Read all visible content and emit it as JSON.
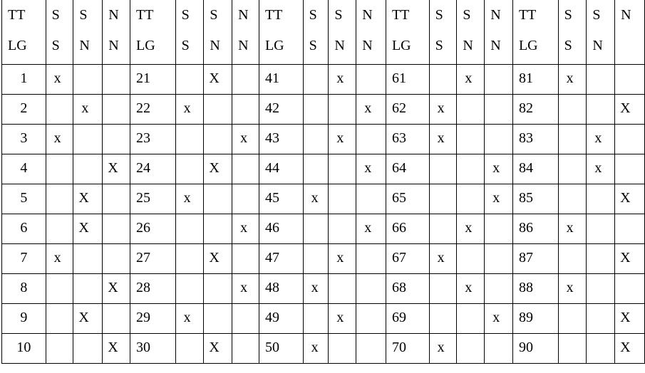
{
  "headers": [
    [
      [
        "TT",
        "LG"
      ],
      [
        "S",
        "S"
      ],
      [
        "S",
        "N"
      ],
      [
        "N",
        "N"
      ]
    ],
    [
      [
        "TT",
        "LG"
      ],
      [
        "S",
        "S"
      ],
      [
        "S",
        "N"
      ],
      [
        "N",
        "N"
      ]
    ],
    [
      [
        "TT",
        "LG"
      ],
      [
        "S",
        "S"
      ],
      [
        "S",
        "N"
      ],
      [
        "N",
        "N"
      ]
    ],
    [
      [
        "TT",
        "LG"
      ],
      [
        "S",
        "S"
      ],
      [
        "S",
        "N"
      ],
      [
        "N",
        "N"
      ]
    ],
    [
      [
        "TT",
        "LG"
      ],
      [
        "S",
        "S"
      ],
      [
        "S",
        "N"
      ],
      [
        "N",
        ""
      ]
    ]
  ],
  "rows": [
    [
      [
        "1",
        "x",
        "",
        ""
      ],
      [
        "21",
        "",
        "X",
        ""
      ],
      [
        "41",
        "",
        "x",
        ""
      ],
      [
        "61",
        "",
        "x",
        ""
      ],
      [
        "81",
        "x",
        "",
        ""
      ]
    ],
    [
      [
        "2",
        "",
        "x",
        ""
      ],
      [
        "22",
        "x",
        "",
        ""
      ],
      [
        "42",
        "",
        "",
        "x"
      ],
      [
        "62",
        "x",
        "",
        ""
      ],
      [
        "82",
        "",
        "",
        "X"
      ]
    ],
    [
      [
        "3",
        "x",
        "",
        ""
      ],
      [
        "23",
        "",
        "",
        "x"
      ],
      [
        "43",
        "",
        "x",
        ""
      ],
      [
        "63",
        "x",
        "",
        ""
      ],
      [
        "83",
        "",
        "x",
        ""
      ]
    ],
    [
      [
        "4",
        "",
        "",
        "X"
      ],
      [
        "24",
        "",
        "X",
        ""
      ],
      [
        "44",
        "",
        "",
        "x"
      ],
      [
        "64",
        "",
        "",
        "x"
      ],
      [
        "84",
        "",
        "x",
        ""
      ]
    ],
    [
      [
        "5",
        "",
        "X",
        ""
      ],
      [
        "25",
        "x",
        "",
        ""
      ],
      [
        "45",
        "x",
        "",
        ""
      ],
      [
        "65",
        "",
        "",
        "x"
      ],
      [
        "85",
        "",
        "",
        "X"
      ]
    ],
    [
      [
        "6",
        "",
        "X",
        ""
      ],
      [
        "26",
        "",
        "",
        "x"
      ],
      [
        "46",
        "",
        "",
        "x"
      ],
      [
        "66",
        "",
        "x",
        ""
      ],
      [
        "86",
        "x",
        "",
        ""
      ]
    ],
    [
      [
        "7",
        "x",
        "",
        ""
      ],
      [
        "27",
        "",
        "X",
        ""
      ],
      [
        "47",
        "",
        "x",
        ""
      ],
      [
        "67",
        "x",
        "",
        ""
      ],
      [
        "87",
        "",
        "",
        "X"
      ]
    ],
    [
      [
        "8",
        "",
        "",
        "X"
      ],
      [
        "28",
        "",
        "",
        "x"
      ],
      [
        "48",
        "x",
        "",
        ""
      ],
      [
        "68",
        "",
        "x",
        ""
      ],
      [
        "88",
        "x",
        "",
        ""
      ]
    ],
    [
      [
        "9",
        "",
        "X",
        ""
      ],
      [
        "29",
        "x",
        "",
        ""
      ],
      [
        "49",
        "",
        "x",
        ""
      ],
      [
        "69",
        "",
        "",
        "x"
      ],
      [
        "89",
        "",
        "",
        "X"
      ]
    ],
    [
      [
        "10",
        "",
        "",
        "X"
      ],
      [
        "30",
        "",
        "X",
        ""
      ],
      [
        "50",
        "x",
        "",
        ""
      ],
      [
        "70",
        "x",
        "",
        ""
      ],
      [
        "90",
        "",
        "",
        "X"
      ]
    ]
  ]
}
